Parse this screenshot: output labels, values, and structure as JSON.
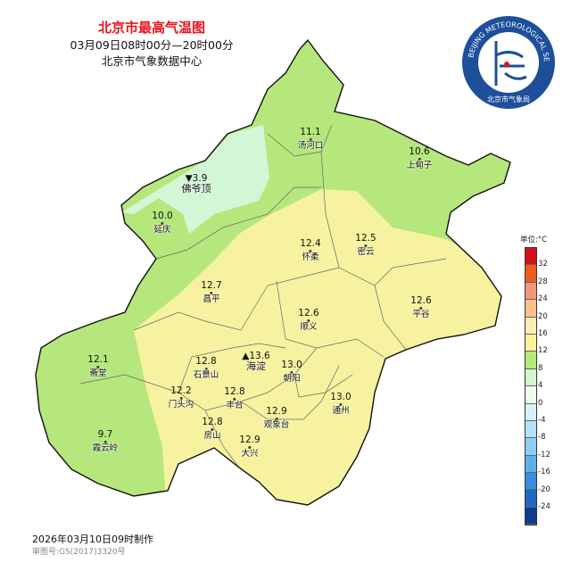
{
  "header": {
    "title": "北京市最高气温图",
    "period": "03月09日08时00分—20时00分",
    "source": "北京市气象数据中心"
  },
  "logo": {
    "text_en": "BEIJING METEOROLOGICAL SERVICE",
    "text_cn": "北京市气象局"
  },
  "stations": [
    {
      "name": "汤河口",
      "value": "11.1"
    },
    {
      "name": "上甸子",
      "value": "10.6"
    },
    {
      "name": "佛爷顶",
      "value": "▼3.9",
      "marker": "min"
    },
    {
      "name": "延庆",
      "value": "10.0"
    },
    {
      "name": "怀柔",
      "value": "12.4"
    },
    {
      "name": "密云",
      "value": "12.5"
    },
    {
      "name": "昌平",
      "value": "12.7"
    },
    {
      "name": "平谷",
      "value": "12.6"
    },
    {
      "name": "顺义",
      "value": "12.6"
    },
    {
      "name": "斋堂",
      "value": "12.1"
    },
    {
      "name": "海淀",
      "value": "▲13.6",
      "marker": "max"
    },
    {
      "name": "石景山",
      "value": "12.8"
    },
    {
      "name": "朝阳",
      "value": "13.0"
    },
    {
      "name": "门头沟",
      "value": "12.2"
    },
    {
      "name": "丰台",
      "value": "12.8"
    },
    {
      "name": "通州",
      "value": "13.0"
    },
    {
      "name": "观象台",
      "value": "12.9"
    },
    {
      "name": "房山",
      "value": "12.8"
    },
    {
      "name": "霞云岭",
      "value": "9.7"
    },
    {
      "name": "大兴",
      "value": "12.9"
    }
  ],
  "legend": {
    "unit": "单位:°C",
    "ticks": [
      "32",
      "28",
      "24",
      "20",
      "16",
      "12",
      "8",
      "4",
      "0",
      "-4",
      "-8",
      "-12",
      "-16",
      "-20",
      "-24"
    ],
    "colors": [
      "#d4101c",
      "#f05a1e",
      "#f4967c",
      "#fbc08e",
      "#fdebb8",
      "#faf29a",
      "#b4e97a",
      "#d2f5cf",
      "#f0fbf0",
      "#d6f1fb",
      "#b4e2f6",
      "#8ccff2",
      "#5cb0e8",
      "#3a8ddb",
      "#1f69c4",
      "#0f3c8c"
    ]
  },
  "map_colors": {
    "8_12": "#b6e77c",
    "12_16": "#f7f2a0",
    "0_4": "#d3f6d6"
  },
  "footer": {
    "made": "2026年03月10日09时制作",
    "approval": "审图号:GS(2017)3320号"
  }
}
